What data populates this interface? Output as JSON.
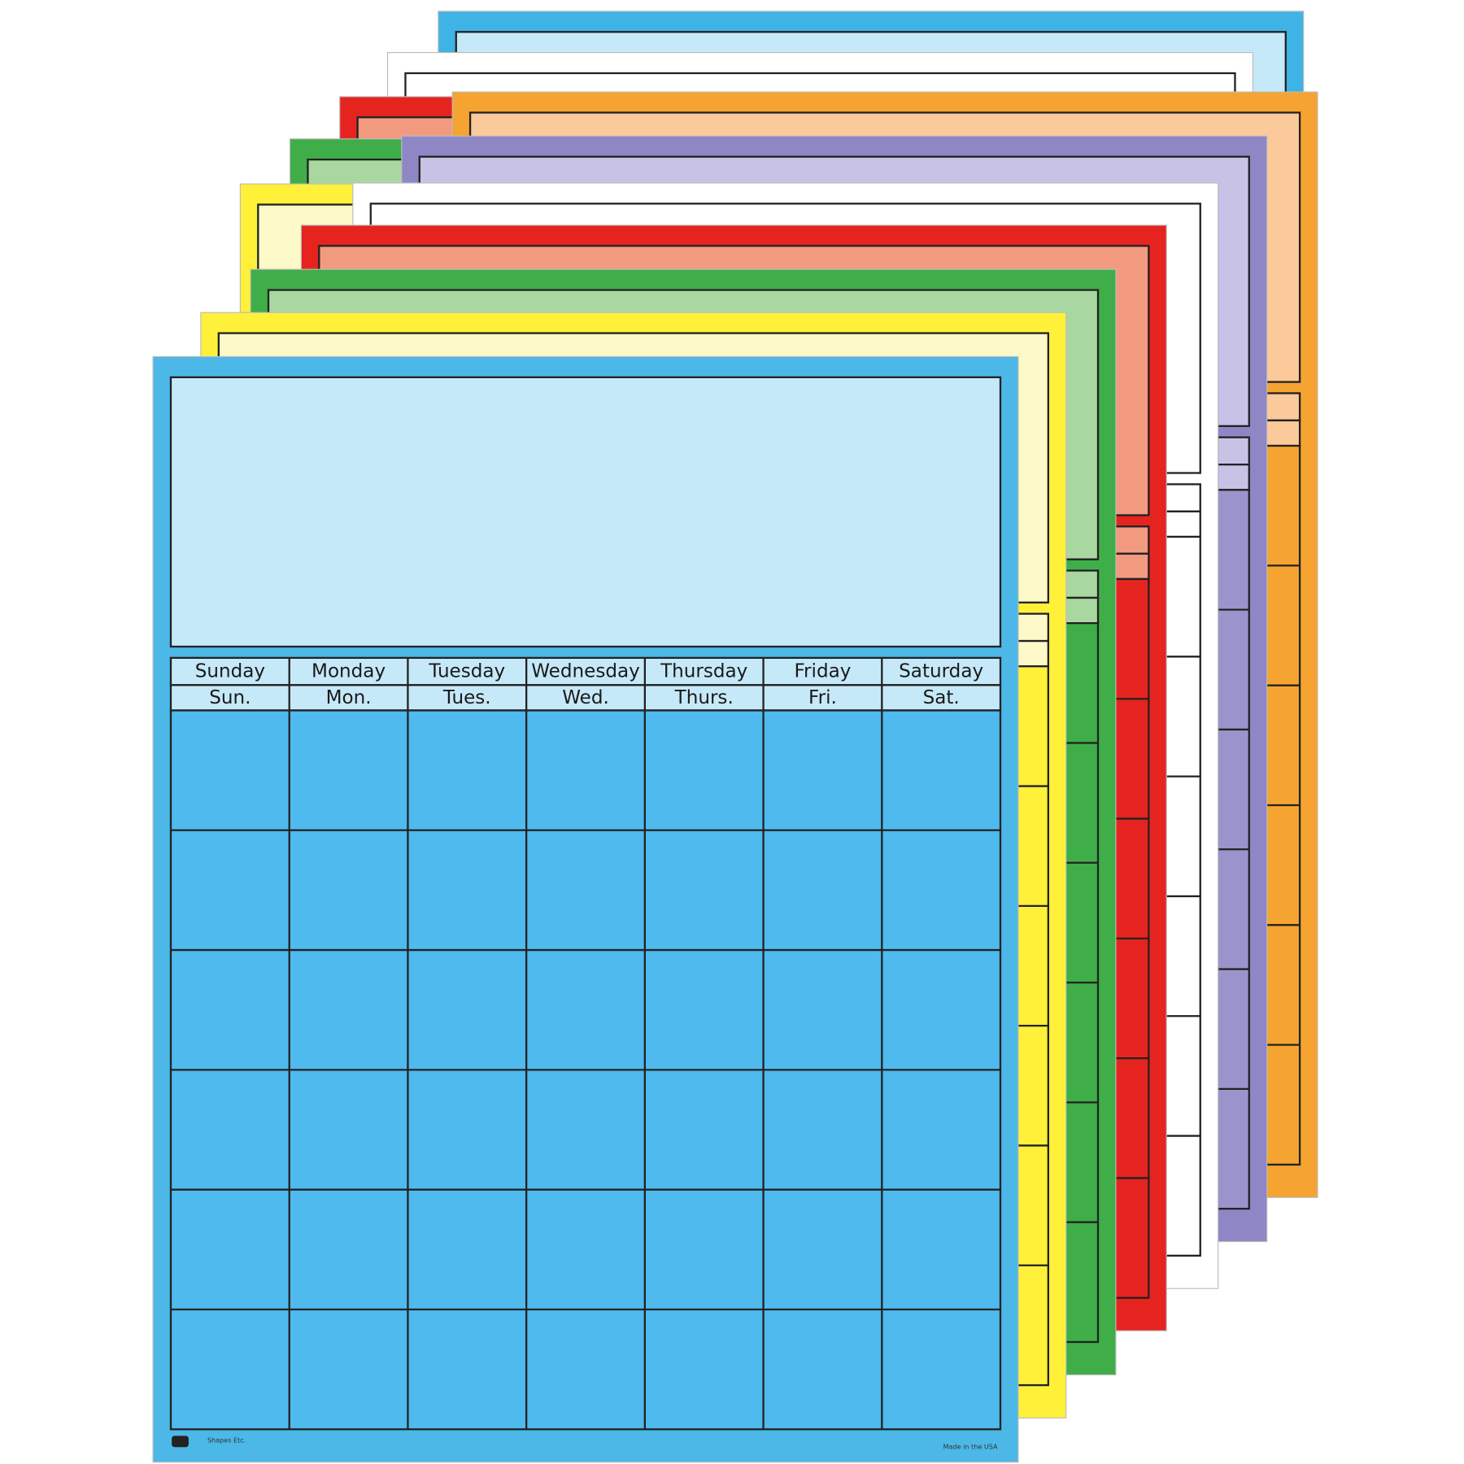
{
  "days": [
    {
      "name": "Sunday",
      "abbr": "Sun."
    },
    {
      "name": "Monday",
      "abbr": "Mon."
    },
    {
      "name": "Tuesday",
      "abbr": "Tues."
    },
    {
      "name": "Wednesday",
      "abbr": "Wed."
    },
    {
      "name": "Thursday",
      "abbr": "Thurs."
    },
    {
      "name": "Friday",
      "abbr": "Fri."
    },
    {
      "name": "Saturday",
      "abbr": "Sat."
    }
  ],
  "footer": {
    "brand": "Shapes Etc.",
    "made_in": "Made in the USA"
  }
}
